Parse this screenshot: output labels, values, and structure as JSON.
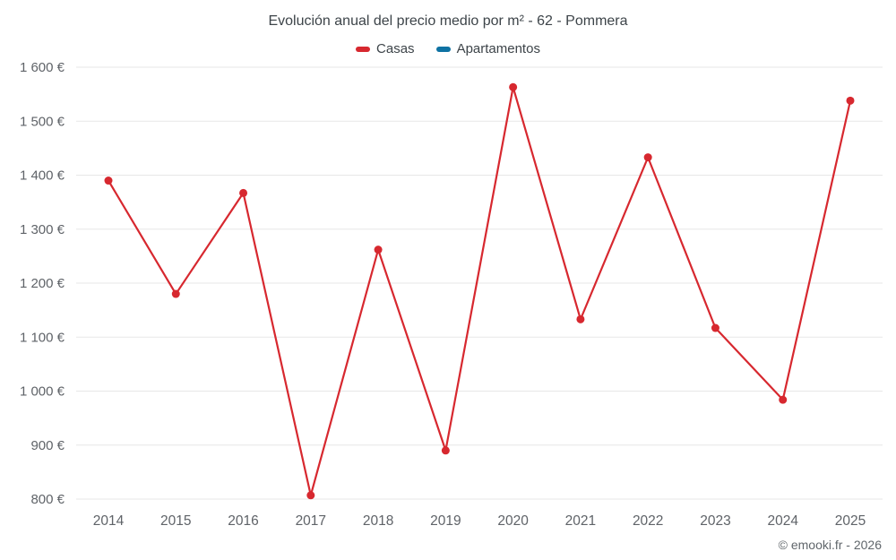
{
  "chart": {
    "title": "Evolución anual del precio medio por m² - 62 - Pommera",
    "copyright": "© emooki.fr - 2026",
    "legend": [
      {
        "label": "Casas",
        "color": "#d7282f"
      },
      {
        "label": "Apartamentos",
        "color": "#0e72a3"
      }
    ]
  },
  "chart_data": {
    "type": "line",
    "title": "Evolución anual del precio medio por m² - 62 - Pommera",
    "x": [
      2014,
      2015,
      2016,
      2017,
      2018,
      2019,
      2020,
      2021,
      2022,
      2023,
      2024,
      2025
    ],
    "series": [
      {
        "name": "Casas",
        "color": "#d7282f",
        "values": [
          1390,
          1180,
          1367,
          807,
          1262,
          890,
          1563,
          1133,
          1433,
          1117,
          984,
          1538
        ]
      },
      {
        "name": "Apartamentos",
        "color": "#0e72a3",
        "values": []
      }
    ],
    "xlabel": "",
    "ylabel": "",
    "ylim": [
      800,
      1600
    ],
    "yticks": [
      800,
      900,
      1000,
      1100,
      1200,
      1300,
      1400,
      1500,
      1600
    ],
    "ytick_labels": [
      "800 €",
      "900 €",
      "1 000 €",
      "1 100 €",
      "1 200 €",
      "1 300 €",
      "1 400 €",
      "1 500 €",
      "1 600 €"
    ],
    "grid": true,
    "legend_position": "top",
    "grid_color": "#e7e7e7",
    "axis_text_color": "#5f6368"
  }
}
